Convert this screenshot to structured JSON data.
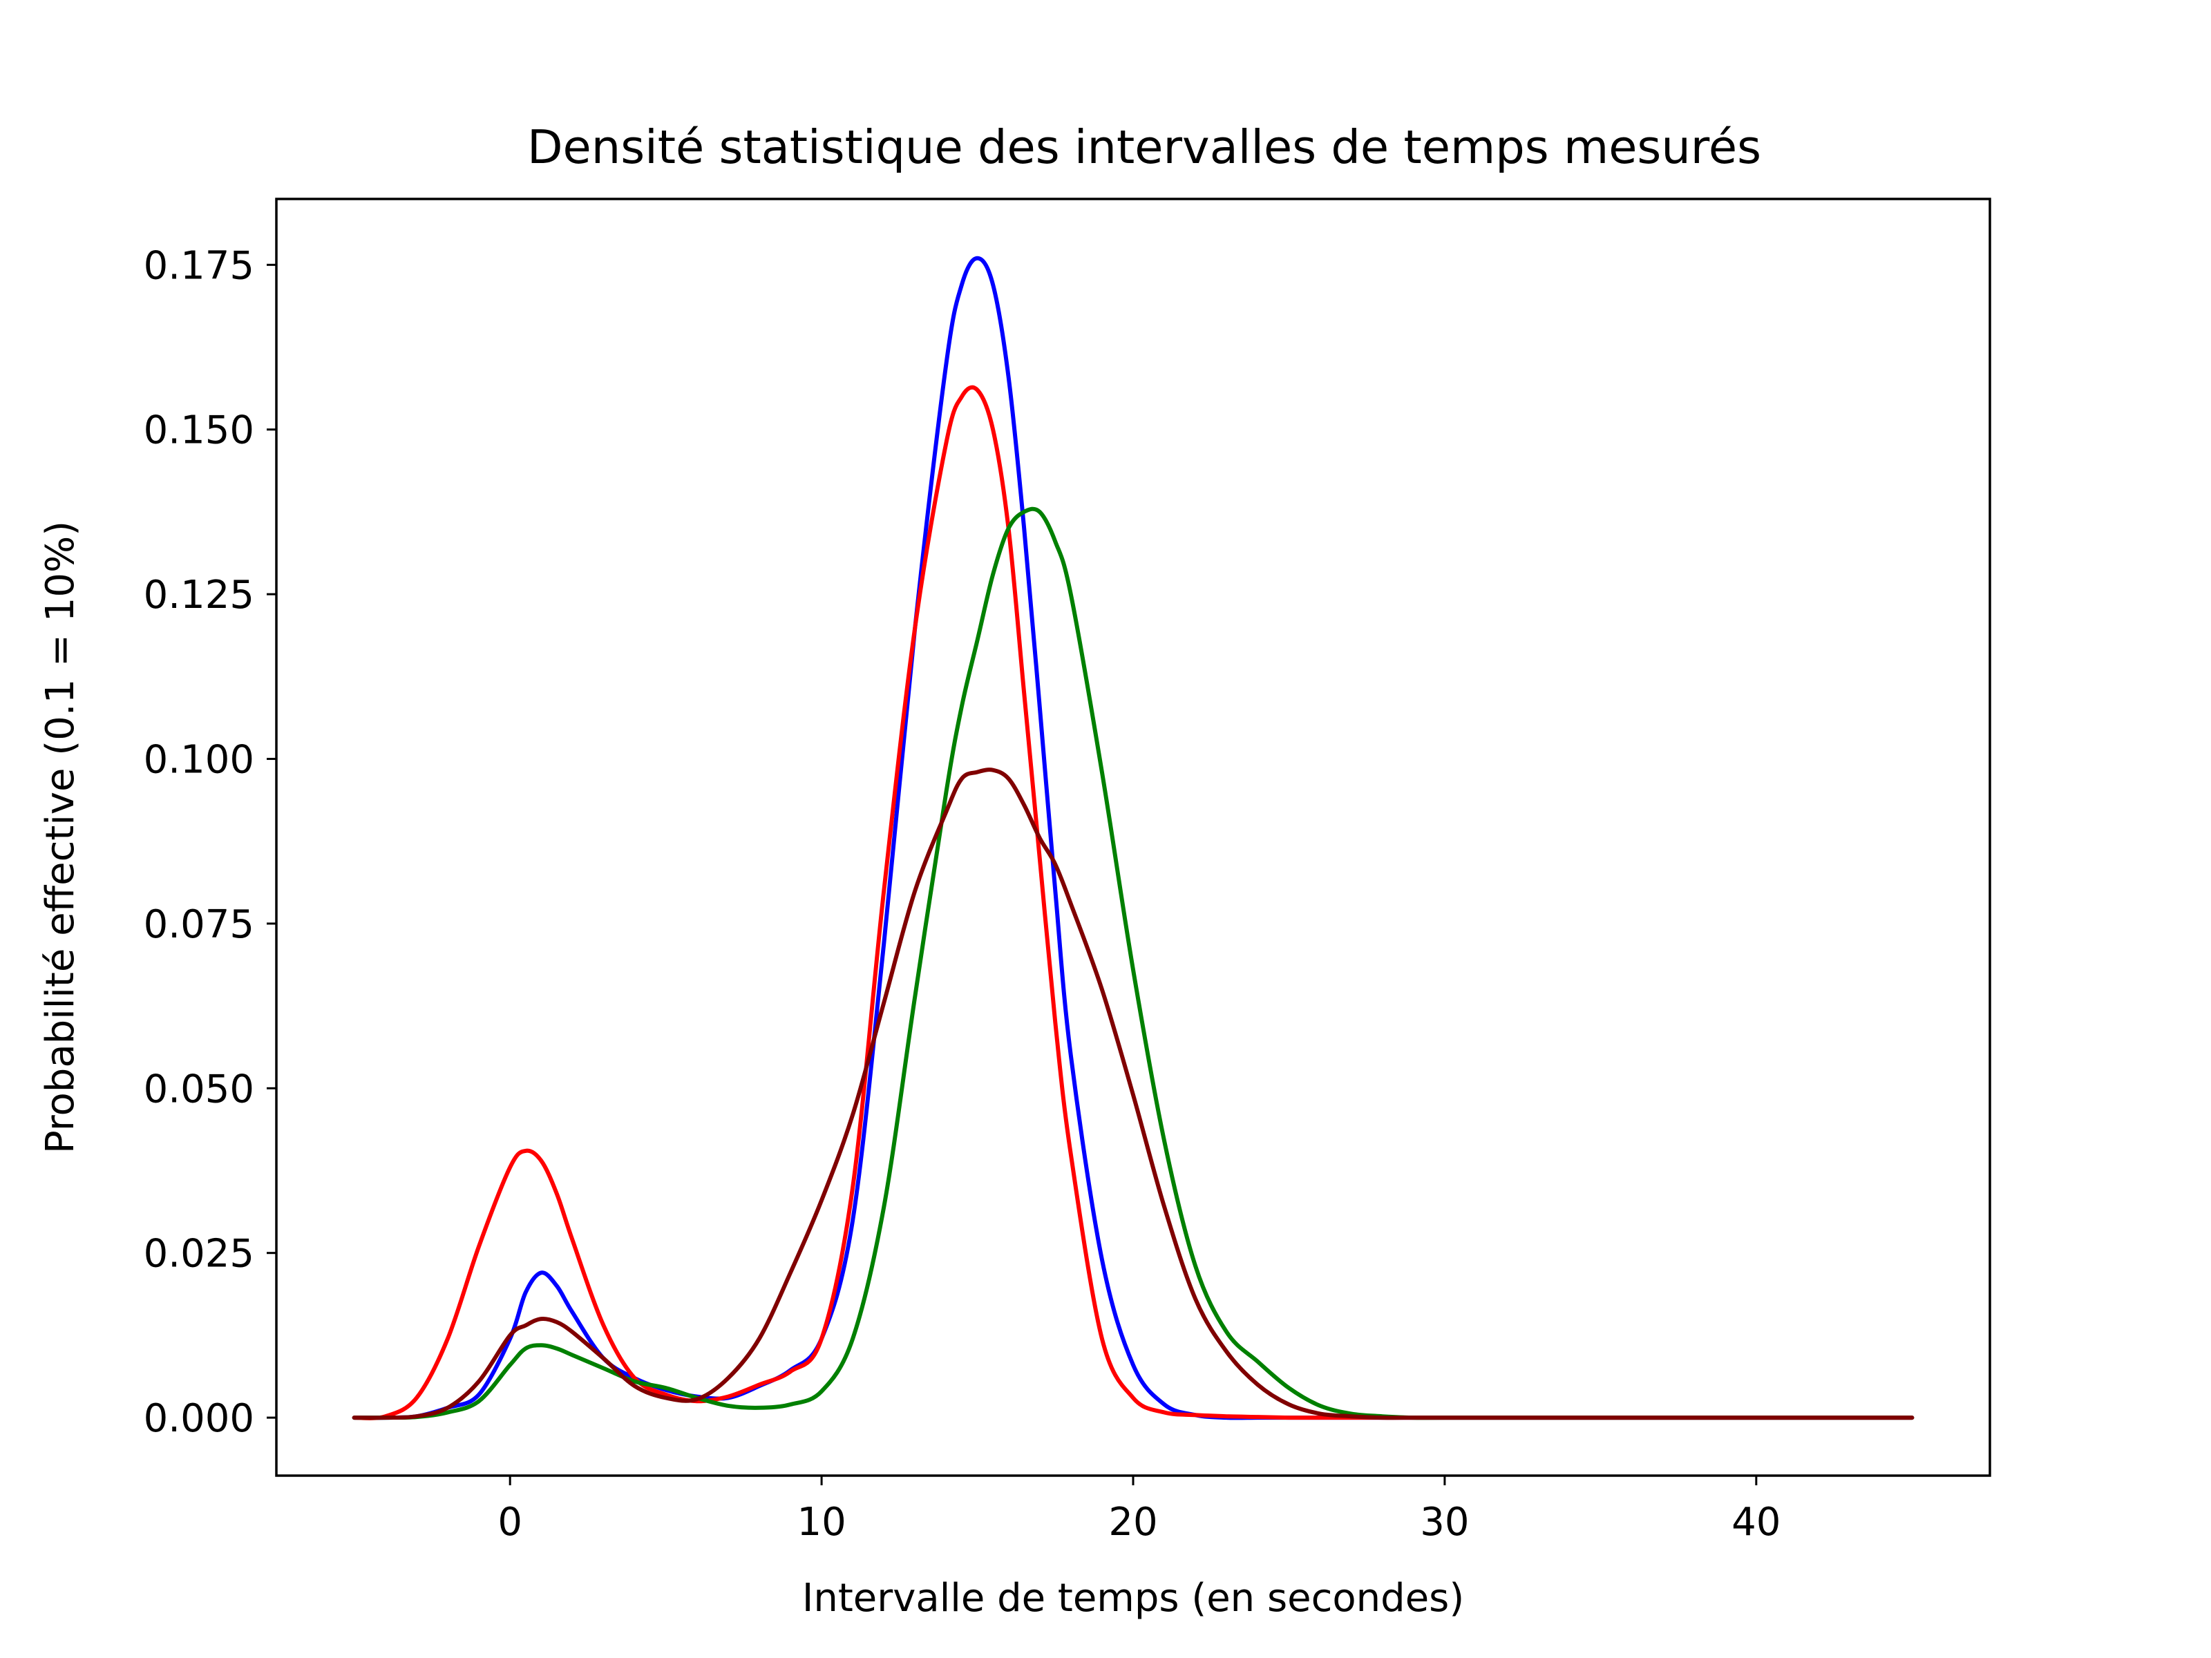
{
  "chart_data": {
    "type": "line",
    "title": "Densité statistique des intervalles de temps mesurés",
    "xlabel": "Intervalle de temps (en secondes)",
    "ylabel": "Probabilité effective (0.1 = 10%)",
    "xlim": [
      -7.5,
      47.5
    ],
    "ylim": [
      -0.0088,
      0.185
    ],
    "xticks": [
      0,
      10,
      20,
      30,
      40
    ],
    "xtick_labels": [
      "0",
      "10",
      "20",
      "30",
      "40"
    ],
    "yticks": [
      0.0,
      0.025,
      0.05,
      0.075,
      0.1,
      0.125,
      0.15,
      0.175
    ],
    "ytick_labels": [
      "0.000",
      "0.025",
      "0.050",
      "0.075",
      "0.100",
      "0.125",
      "0.150",
      "0.175"
    ],
    "grid": false,
    "legend": "none",
    "x": [
      -5,
      -4,
      -3,
      -2,
      -1,
      0,
      0.5,
      1,
      1.5,
      2,
      3,
      4,
      5,
      6,
      7,
      8,
      9,
      10,
      11,
      12,
      13,
      14,
      14.5,
      15,
      15.5,
      16,
      16.5,
      17,
      17.5,
      18,
      19,
      20,
      21,
      22,
      23,
      24,
      25,
      26,
      27,
      28,
      29,
      30,
      35,
      40,
      45
    ],
    "series": [
      {
        "color": "#0000ff",
        "values": [
          0,
          0,
          0.0002,
          0.0015,
          0.0035,
          0.012,
          0.019,
          0.022,
          0.02,
          0.016,
          0.009,
          0.006,
          0.0042,
          0.0032,
          0.003,
          0.0048,
          0.0072,
          0.012,
          0.03,
          0.072,
          0.12,
          0.16,
          0.172,
          0.176,
          0.172,
          0.158,
          0.135,
          0.108,
          0.08,
          0.055,
          0.024,
          0.008,
          0.002,
          0.0004,
          0,
          0,
          0,
          0,
          0,
          0,
          0,
          0,
          0,
          0,
          0
        ]
      },
      {
        "color": "#ff0000",
        "values": [
          0,
          0.0002,
          0.003,
          0.012,
          0.026,
          0.038,
          0.0405,
          0.039,
          0.034,
          0.027,
          0.014,
          0.006,
          0.0035,
          0.0025,
          0.0032,
          0.005,
          0.007,
          0.012,
          0.035,
          0.08,
          0.12,
          0.148,
          0.155,
          0.156,
          0.15,
          0.135,
          0.11,
          0.085,
          0.06,
          0.04,
          0.012,
          0.003,
          0.0008,
          0.0004,
          0.0002,
          0.0001,
          0,
          0,
          0,
          0,
          0,
          0,
          0,
          0,
          0
        ]
      },
      {
        "color": "#008000",
        "values": [
          0,
          0,
          0.0001,
          0.0008,
          0.0025,
          0.008,
          0.0105,
          0.011,
          0.0105,
          0.0095,
          0.0075,
          0.0055,
          0.0045,
          0.003,
          0.0018,
          0.0015,
          0.002,
          0.004,
          0.012,
          0.032,
          0.064,
          0.095,
          0.108,
          0.118,
          0.128,
          0.135,
          0.1375,
          0.1375,
          0.133,
          0.125,
          0.098,
          0.068,
          0.042,
          0.023,
          0.013,
          0.0085,
          0.0045,
          0.0018,
          0.0006,
          0.0002,
          0,
          0,
          0,
          0,
          0
        ]
      },
      {
        "color": "#800000",
        "values": [
          0,
          0,
          0.0002,
          0.0015,
          0.0055,
          0.0125,
          0.014,
          0.015,
          0.0145,
          0.013,
          0.009,
          0.0048,
          0.003,
          0.0028,
          0.006,
          0.012,
          0.022,
          0.033,
          0.046,
          0.063,
          0.08,
          0.092,
          0.097,
          0.098,
          0.0983,
          0.097,
          0.093,
          0.088,
          0.084,
          0.078,
          0.065,
          0.049,
          0.032,
          0.018,
          0.01,
          0.005,
          0.002,
          0.0006,
          0.0002,
          0,
          0,
          0,
          0,
          0,
          0
        ]
      }
    ]
  }
}
